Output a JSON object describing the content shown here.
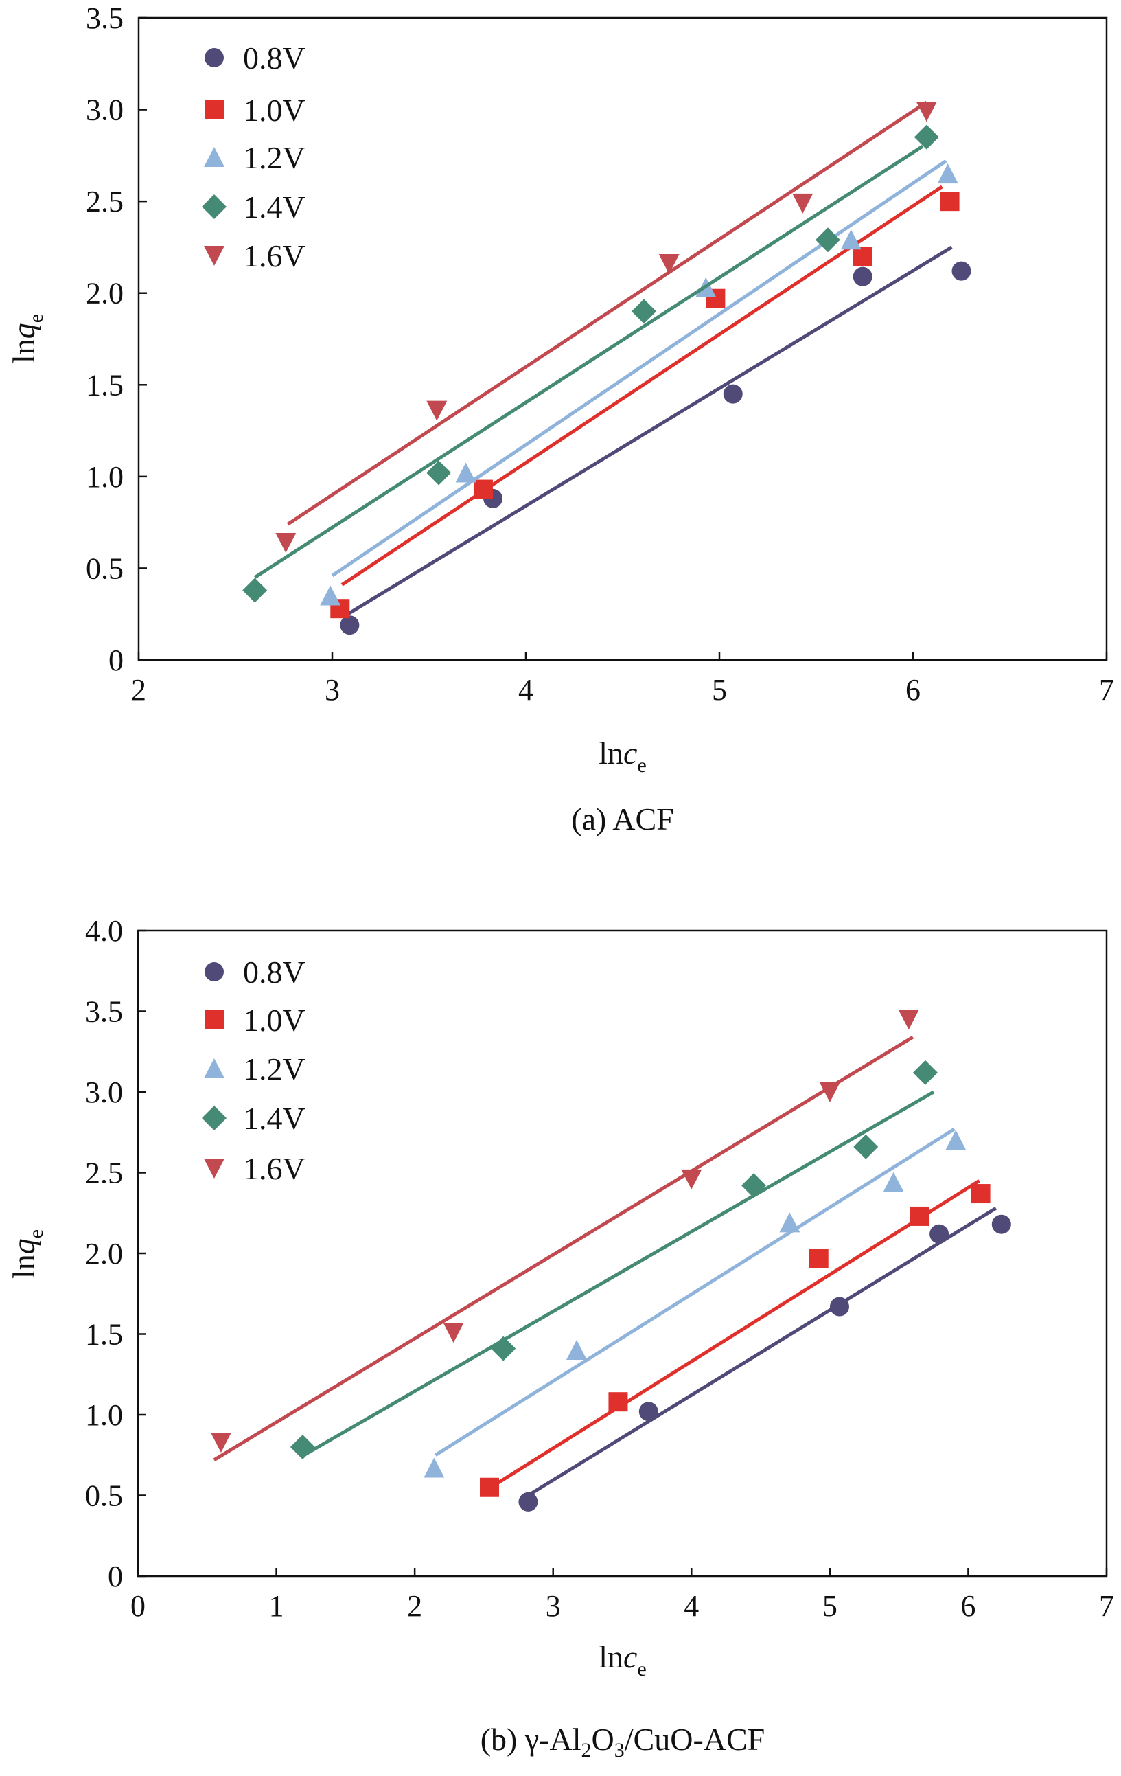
{
  "chart_data": [
    {
      "type": "scatter",
      "caption": "(a) ACF",
      "xlabel": {
        "base": "ln",
        "var": "c",
        "sub": "e"
      },
      "ylabel": {
        "base": "ln",
        "var": "q",
        "sub": "e"
      },
      "xlim": [
        2,
        7
      ],
      "ylim": [
        0,
        3.5
      ],
      "xticks": [
        "2",
        "3",
        "4",
        "5",
        "6",
        "7"
      ],
      "yticks": [
        "0",
        "0.5",
        "1.0",
        "1.5",
        "2.0",
        "2.5",
        "3.0",
        "3.5"
      ],
      "grid": false,
      "legend_position": "top-left",
      "series": [
        {
          "name": "0.8V",
          "marker": "circle",
          "color": "#4f4a78",
          "x": [
            3.09,
            3.83,
            5.07,
            5.74,
            6.25
          ],
          "y": [
            0.19,
            0.88,
            1.45,
            2.09,
            2.12
          ],
          "fit": [
            [
              3.08,
              0.25
            ],
            [
              6.2,
              2.25
            ]
          ]
        },
        {
          "name": "1.0V",
          "marker": "square",
          "color": "#e0302c",
          "x": [
            3.04,
            3.78,
            4.98,
            5.74,
            6.19
          ],
          "y": [
            0.28,
            0.93,
            1.97,
            2.2,
            2.5
          ],
          "fit": [
            [
              3.05,
              0.41
            ],
            [
              6.15,
              2.58
            ]
          ]
        },
        {
          "name": "1.2V",
          "marker": "triangle-up",
          "color": "#8fb3db",
          "x": [
            2.99,
            3.69,
            4.93,
            5.68,
            6.18
          ],
          "y": [
            0.35,
            1.02,
            2.03,
            2.29,
            2.65
          ],
          "fit": [
            [
              3.0,
              0.46
            ],
            [
              6.17,
              2.72
            ]
          ]
        },
        {
          "name": "1.4V",
          "marker": "diamond",
          "color": "#458a74",
          "x": [
            2.6,
            3.55,
            4.61,
            5.56,
            6.07
          ],
          "y": [
            0.38,
            1.02,
            1.9,
            2.29,
            2.85
          ],
          "fit": [
            [
              2.6,
              0.45
            ],
            [
              6.05,
              2.8
            ]
          ]
        },
        {
          "name": "1.6V",
          "marker": "triangle-down",
          "color": "#c24950",
          "x": [
            2.76,
            3.54,
            4.74,
            5.43,
            6.07
          ],
          "y": [
            0.64,
            1.36,
            2.16,
            2.49,
            2.99
          ],
          "fit": [
            [
              2.77,
              0.74
            ],
            [
              6.07,
              3.04
            ]
          ]
        }
      ]
    },
    {
      "type": "scatter",
      "caption": "(b) γ-Al2O3/CuO-ACF",
      "caption_parts": {
        "a": "(b) γ-Al",
        "s1": "2",
        "b": "O",
        "s2": "3",
        "c": "/CuO-ACF"
      },
      "xlabel": {
        "base": "ln",
        "var": "c",
        "sub": "e"
      },
      "ylabel": {
        "base": "ln",
        "var": "q",
        "sub": "e"
      },
      "xlim": [
        0,
        7
      ],
      "ylim": [
        0,
        4.0
      ],
      "xticks": [
        "0",
        "1",
        "2",
        "3",
        "4",
        "5",
        "6",
        "7"
      ],
      "yticks": [
        "0",
        "0.5",
        "1.0",
        "1.5",
        "2.0",
        "2.5",
        "3.0",
        "3.5",
        "4.0"
      ],
      "grid": false,
      "legend_position": "top-left",
      "series": [
        {
          "name": "0.8V",
          "marker": "circle",
          "color": "#4f4a78",
          "x": [
            2.82,
            3.69,
            5.07,
            5.79,
            6.24
          ],
          "y": [
            0.46,
            1.02,
            1.67,
            2.12,
            2.18
          ],
          "fit": [
            [
              2.8,
              0.49
            ],
            [
              6.2,
              2.28
            ]
          ]
        },
        {
          "name": "1.0V",
          "marker": "square",
          "color": "#e0302c",
          "x": [
            2.54,
            3.47,
            4.92,
            5.65,
            6.09
          ],
          "y": [
            0.55,
            1.08,
            1.97,
            2.23,
            2.37
          ],
          "fit": [
            [
              2.55,
              0.55
            ],
            [
              6.08,
              2.45
            ]
          ]
        },
        {
          "name": "1.2V",
          "marker": "triangle-up",
          "color": "#8fb3db",
          "x": [
            2.14,
            3.17,
            4.71,
            5.46,
            5.91
          ],
          "y": [
            0.67,
            1.4,
            2.19,
            2.44,
            2.7
          ],
          "fit": [
            [
              2.15,
              0.75
            ],
            [
              5.9,
              2.77
            ]
          ]
        },
        {
          "name": "1.4V",
          "marker": "diamond",
          "color": "#458a74",
          "x": [
            1.19,
            2.64,
            4.45,
            5.26,
            5.69
          ],
          "y": [
            0.8,
            1.41,
            2.42,
            2.66,
            3.12
          ],
          "fit": [
            [
              1.2,
              0.75
            ],
            [
              5.75,
              3.0
            ]
          ]
        },
        {
          "name": "1.6V",
          "marker": "triangle-down",
          "color": "#c24950",
          "x": [
            0.6,
            2.28,
            4.0,
            5.0,
            5.57
          ],
          "y": [
            0.83,
            1.51,
            2.46,
            3.0,
            3.45
          ],
          "fit": [
            [
              0.55,
              0.72
            ],
            [
              5.6,
              3.34
            ]
          ]
        }
      ]
    }
  ]
}
